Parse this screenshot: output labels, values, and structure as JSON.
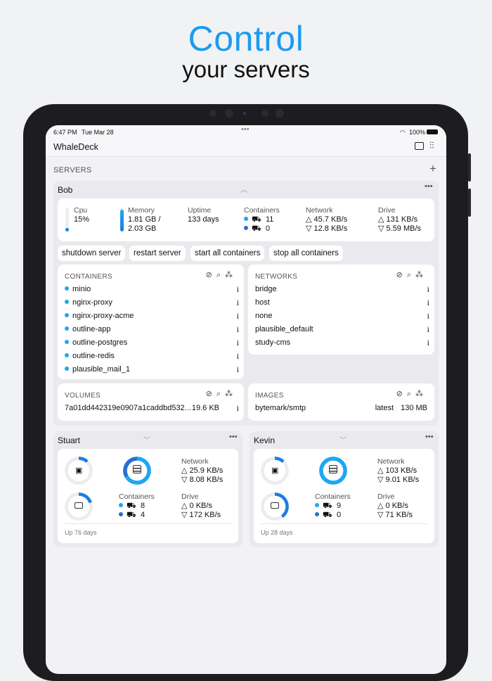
{
  "hero": {
    "title": "Control",
    "subtitle": "your servers"
  },
  "status": {
    "time": "6:47 PM",
    "date": "Tue Mar 28",
    "battery": "100%"
  },
  "nav": {
    "title": "WhaleDeck",
    "icons": [
      "chat-bubble-icon",
      "sliders-icon"
    ]
  },
  "servers_label": "SERVERS",
  "colors": {
    "accent": "#1a9cf0",
    "running": "#1fa7ef",
    "stopped": "#2a6fd0"
  },
  "bob": {
    "name": "Bob",
    "cpu": {
      "label": "Cpu",
      "value": "15%",
      "fraction": 0.15
    },
    "memory": {
      "label": "Memory",
      "value1": "1.81 GB /",
      "value2": "2.03 GB",
      "fraction": 0.89
    },
    "uptime": {
      "label": "Uptime",
      "value": "133 days"
    },
    "containers": {
      "label": "Containers",
      "running": "11",
      "stopped": "0"
    },
    "network": {
      "label": "Network",
      "up": "45.7 KB/s",
      "down": "12.8 KB/s"
    },
    "drive": {
      "label": "Drive",
      "up": "131 KB/s",
      "down": "5.59 MB/s"
    },
    "actions": [
      "shutdown server",
      "restart server",
      "start all containers",
      "stop all containers"
    ],
    "containers_panel": {
      "title": "CONTAINERS",
      "items": [
        "minio",
        "nginx-proxy",
        "nginx-proxy-acme",
        "outline-app",
        "outline-postgres",
        "outline-redis",
        "plausible_mail_1"
      ]
    },
    "networks_panel": {
      "title": "NETWORKS",
      "items": [
        "bridge",
        "host",
        "none",
        "plausible_default",
        "study-cms"
      ]
    },
    "volumes_panel": {
      "title": "VOLUMES",
      "items": [
        {
          "name": "7a01dd442319e0907a1caddbd532...",
          "size": "19.6 KB"
        }
      ]
    },
    "images_panel": {
      "title": "IMAGES",
      "items": [
        {
          "name": "bytemark/smtp",
          "tag": "latest",
          "size": "130 MB"
        }
      ]
    }
  },
  "others": [
    {
      "name": "Stuart",
      "network_label": "Network",
      "net_up": "25.9 KB/s",
      "net_down": "8.08 KB/s",
      "containers_label": "Containers",
      "running": "8",
      "stopped": "4",
      "drive_label": "Drive",
      "drive_up": "0 KB/s",
      "drive_down": "172 KB/s",
      "uptime": "Up 76 days",
      "cpu_fraction": 0.12,
      "mem_fraction": 0.2,
      "container_running_fraction": 0.67
    },
    {
      "name": "Kevin",
      "network_label": "Network",
      "net_up": "103 KB/s",
      "net_down": "9.01 KB/s",
      "containers_label": "Containers",
      "running": "9",
      "stopped": "0",
      "drive_label": "Drive",
      "drive_up": "0 KB/s",
      "drive_down": "71 KB/s",
      "uptime": "Up 28 days",
      "cpu_fraction": 0.12,
      "mem_fraction": 0.4,
      "container_running_fraction": 1.0
    }
  ]
}
